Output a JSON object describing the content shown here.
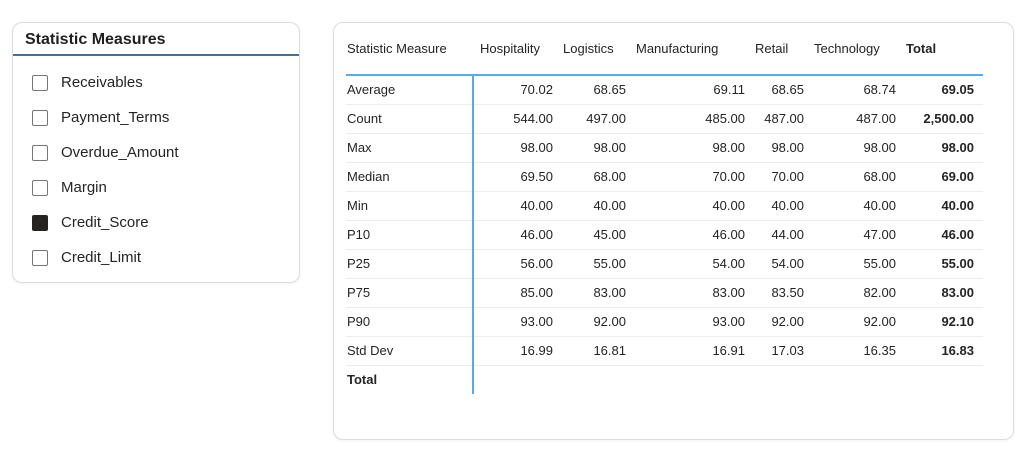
{
  "slicer": {
    "title": "Statistic Measures",
    "items": [
      {
        "label": "Receivables",
        "checked": false
      },
      {
        "label": "Payment_Terms",
        "checked": false
      },
      {
        "label": "Overdue_Amount",
        "checked": false
      },
      {
        "label": "Margin",
        "checked": false
      },
      {
        "label": "Credit_Score",
        "checked": true
      },
      {
        "label": "Credit_Limit",
        "checked": false
      }
    ]
  },
  "table": {
    "columns": [
      "Statistic Measure",
      "Hospitality",
      "Logistics",
      "Manufacturing",
      "Retail",
      "Technology",
      "Total"
    ],
    "rows": [
      {
        "label": "Average",
        "values": [
          "70.02",
          "68.65",
          "69.11",
          "68.65",
          "68.74"
        ],
        "total": "69.05"
      },
      {
        "label": "Count",
        "values": [
          "544.00",
          "497.00",
          "485.00",
          "487.00",
          "487.00"
        ],
        "total": "2,500.00"
      },
      {
        "label": "Max",
        "values": [
          "98.00",
          "98.00",
          "98.00",
          "98.00",
          "98.00"
        ],
        "total": "98.00"
      },
      {
        "label": "Median",
        "values": [
          "69.50",
          "68.00",
          "70.00",
          "70.00",
          "68.00"
        ],
        "total": "69.00"
      },
      {
        "label": "Min",
        "values": [
          "40.00",
          "40.00",
          "40.00",
          "40.00",
          "40.00"
        ],
        "total": "40.00"
      },
      {
        "label": "P10",
        "values": [
          "46.00",
          "45.00",
          "46.00",
          "44.00",
          "47.00"
        ],
        "total": "46.00"
      },
      {
        "label": "P25",
        "values": [
          "56.00",
          "55.00",
          "54.00",
          "54.00",
          "55.00"
        ],
        "total": "55.00"
      },
      {
        "label": "P75",
        "values": [
          "85.00",
          "83.00",
          "83.00",
          "83.50",
          "82.00"
        ],
        "total": "83.00"
      },
      {
        "label": "P90",
        "values": [
          "93.00",
          "92.00",
          "93.00",
          "92.00",
          "92.00"
        ],
        "total": "92.10"
      },
      {
        "label": "Std Dev",
        "values": [
          "16.99",
          "16.81",
          "16.91",
          "17.03",
          "16.35"
        ],
        "total": "16.83"
      },
      {
        "label": "Total",
        "values": [
          "",
          "",
          "",
          "",
          ""
        ],
        "total": ""
      }
    ]
  },
  "colors": {
    "table_grid_blue": "#5AA9E8",
    "slicer_underline_blue": "#41719C",
    "checkbox_checked_fill": "#252423",
    "text": "#252423",
    "row_separator": "#EDEDED",
    "card_border": "#DCDCDC"
  }
}
